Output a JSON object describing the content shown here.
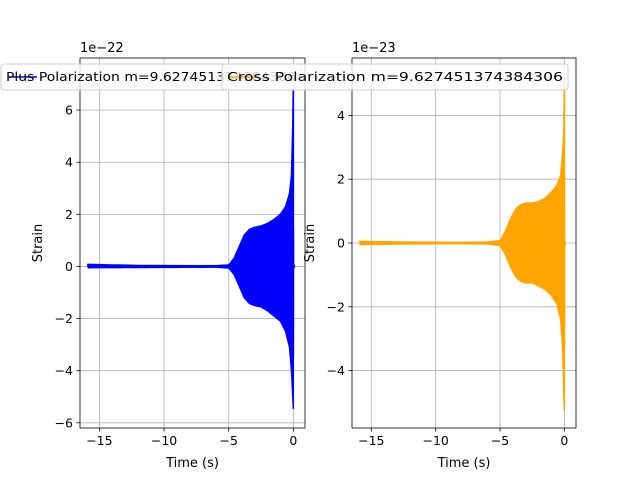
{
  "chart_data": [
    {
      "type": "line",
      "title": "",
      "xlabel": "Time (s)",
      "ylabel": "Strain",
      "offset_text": "1e−22",
      "scale": 1e-22,
      "xlim": [
        -16.5,
        0.9
      ],
      "ylim": [
        -6.2,
        8.0
      ],
      "xticks": [
        -15,
        -10,
        -5,
        0
      ],
      "xtick_labels": [
        "−15",
        "−10",
        "−5",
        "0"
      ],
      "yticks": [
        -6,
        -4,
        -2,
        0,
        2,
        4,
        6
      ],
      "ytick_labels": [
        "−6",
        "−4",
        "−2",
        "0",
        "2",
        "4",
        "6"
      ],
      "grid": true,
      "legend": {
        "placement": "top",
        "entries": [
          "Plus Polarization m=9.627451374384306"
        ]
      },
      "series": [
        {
          "name": "Plus Polarization m=9.627451374384306",
          "color": "#0000ff",
          "style": "oscillating-chirp-envelope",
          "x_start": -15.9,
          "x_end": 0.1,
          "envelope": [
            [
              -15.9,
              0.08,
              -0.05
            ],
            [
              -12,
              0.04,
              -0.04
            ],
            [
              -8,
              0.03,
              -0.03
            ],
            [
              -6,
              0.03,
              -0.03
            ],
            [
              -5,
              0.06,
              -0.06
            ],
            [
              -4.6,
              0.3,
              -0.3
            ],
            [
              -4.2,
              0.75,
              -0.75
            ],
            [
              -3.8,
              1.2,
              -1.2
            ],
            [
              -3.4,
              1.42,
              -1.42
            ],
            [
              -3.0,
              1.5,
              -1.5
            ],
            [
              -2.5,
              1.55,
              -1.55
            ],
            [
              -2.0,
              1.65,
              -1.7
            ],
            [
              -1.5,
              1.8,
              -1.9
            ],
            [
              -1.0,
              2.0,
              -2.1
            ],
            [
              -0.6,
              2.3,
              -2.5
            ],
            [
              -0.3,
              2.8,
              -3.1
            ],
            [
              -0.15,
              3.5,
              -4.0
            ],
            [
              -0.05,
              5.5,
              -5.0
            ],
            [
              0.0,
              7.3,
              -5.5
            ],
            [
              0.02,
              0.1,
              -0.1
            ],
            [
              0.1,
              0.0,
              0.0
            ]
          ]
        }
      ]
    },
    {
      "type": "line",
      "title": "",
      "xlabel": "Time (s)",
      "ylabel": "Strain",
      "offset_text": "1e−23",
      "scale": 1e-23,
      "xlim": [
        -16.5,
        0.9
      ],
      "ylim": [
        -5.8,
        5.8
      ],
      "xticks": [
        -15,
        -10,
        -5,
        0
      ],
      "xtick_labels": [
        "−15",
        "−10",
        "−5",
        "0"
      ],
      "yticks": [
        -4,
        -2,
        0,
        2,
        4
      ],
      "ytick_labels": [
        "−4",
        "−2",
        "0",
        "2",
        "4"
      ],
      "grid": true,
      "legend": {
        "placement": "top",
        "entries": [
          "Cross Polarization m=9.627451374384306"
        ]
      },
      "series": [
        {
          "name": "Cross Polarization m=9.627451374384306",
          "color": "#ffa500",
          "style": "oscillating-chirp-envelope",
          "x_start": -15.9,
          "x_end": 0.1,
          "envelope": [
            [
              -15.9,
              0.05,
              -0.05
            ],
            [
              -12,
              0.03,
              -0.03
            ],
            [
              -8,
              0.02,
              -0.02
            ],
            [
              -6,
              0.03,
              -0.03
            ],
            [
              -5,
              0.08,
              -0.08
            ],
            [
              -4.6,
              0.35,
              -0.35
            ],
            [
              -4.2,
              0.75,
              -0.75
            ],
            [
              -3.8,
              1.05,
              -1.05
            ],
            [
              -3.4,
              1.2,
              -1.2
            ],
            [
              -3.0,
              1.25,
              -1.25
            ],
            [
              -2.5,
              1.25,
              -1.25
            ],
            [
              -2.0,
              1.3,
              -1.35
            ],
            [
              -1.5,
              1.4,
              -1.45
            ],
            [
              -1.0,
              1.6,
              -1.65
            ],
            [
              -0.6,
              1.8,
              -1.9
            ],
            [
              -0.3,
              2.1,
              -2.4
            ],
            [
              -0.15,
              2.8,
              -3.2
            ],
            [
              -0.05,
              3.5,
              -4.8
            ],
            [
              0.0,
              5.6,
              -5.3
            ],
            [
              0.02,
              0.1,
              -0.1
            ],
            [
              0.1,
              0.0,
              0.0
            ]
          ]
        }
      ]
    }
  ]
}
